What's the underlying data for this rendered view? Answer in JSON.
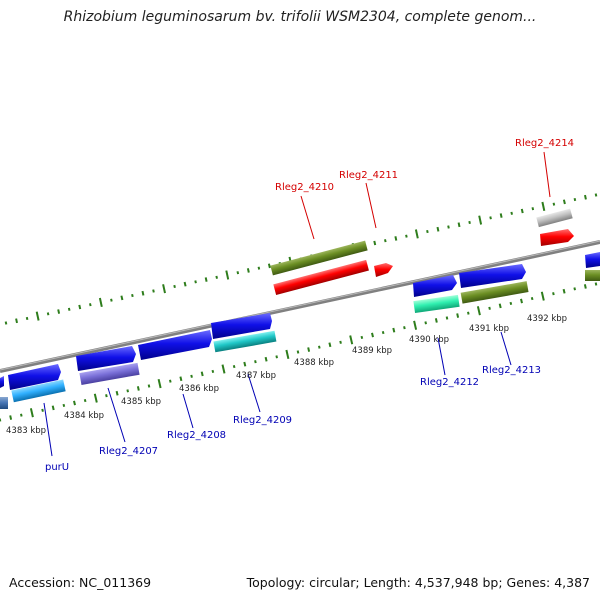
{
  "title": "Rhizobium leguminosarum bv. trifolii WSM2304, complete genom...",
  "footer": {
    "accession": "Accession: NC_011369",
    "summary": "Topology: circular; Length: 4,537,948 bp; Genes: 4,387"
  },
  "colors": {
    "strand_top": "#2e7d1c",
    "strand_bottom": "#2e7d1c",
    "backbone": "#808080",
    "label_top": "#d40000",
    "label_bottom": "#0000b4"
  },
  "kbp_labels": [
    "4383 kbp",
    "4384 kbp",
    "4385 kbp",
    "4386 kbp",
    "4387 kbp",
    "4388 kbp",
    "4389 kbp",
    "4390 kbp",
    "4391 kbp",
    "4392 kbp"
  ],
  "gene_labels_top": [
    "Rleg2_4210",
    "Rleg2_4211",
    "Rleg2_4214"
  ],
  "gene_labels_bottom": [
    "purU",
    "Rleg2_4207",
    "Rleg2_4208",
    "Rleg2_4209",
    "Rleg2_4212",
    "Rleg2_4213"
  ]
}
